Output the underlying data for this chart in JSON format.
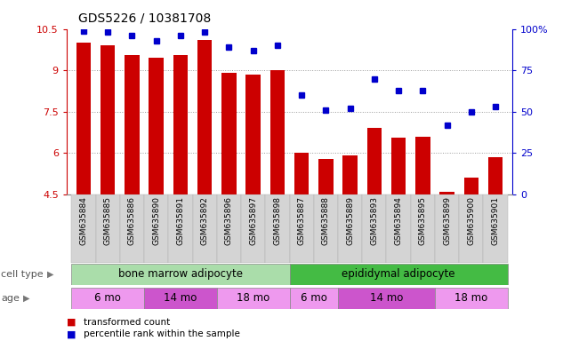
{
  "title": "GDS5226 / 10381708",
  "samples": [
    "GSM635884",
    "GSM635885",
    "GSM635886",
    "GSM635890",
    "GSM635891",
    "GSM635892",
    "GSM635896",
    "GSM635897",
    "GSM635898",
    "GSM635887",
    "GSM635888",
    "GSM635889",
    "GSM635893",
    "GSM635894",
    "GSM635895",
    "GSM635899",
    "GSM635900",
    "GSM635901"
  ],
  "bar_values": [
    10.0,
    9.9,
    9.55,
    9.45,
    9.55,
    10.1,
    8.9,
    8.85,
    9.0,
    6.0,
    5.8,
    5.9,
    6.9,
    6.55,
    6.6,
    4.6,
    5.1,
    5.85
  ],
  "dot_values": [
    99,
    98,
    96,
    93,
    96,
    98,
    89,
    87,
    90,
    60,
    51,
    52,
    70,
    63,
    63,
    42,
    50,
    53
  ],
  "ylim": [
    4.5,
    10.5
  ],
  "y2lim": [
    0,
    100
  ],
  "yticks": [
    4.5,
    6.0,
    7.5,
    9.0,
    10.5
  ],
  "ytick_labels": [
    "4.5",
    "6",
    "7.5",
    "9",
    "10.5"
  ],
  "y2ticks": [
    0,
    25,
    50,
    75,
    100
  ],
  "y2tick_labels": [
    "0",
    "25",
    "50",
    "75",
    "100%"
  ],
  "bar_color": "#cc0000",
  "dot_color": "#0000cc",
  "cell_type_groups": [
    {
      "label": "bone marrow adipocyte",
      "start": 0,
      "end": 9,
      "color": "#aaddaa"
    },
    {
      "label": "epididymal adipocyte",
      "start": 9,
      "end": 18,
      "color": "#44bb44"
    }
  ],
  "age_groups": [
    {
      "label": "6 mo",
      "start": 0,
      "end": 3,
      "color": "#ee99ee"
    },
    {
      "label": "14 mo",
      "start": 3,
      "end": 6,
      "color": "#cc55cc"
    },
    {
      "label": "18 mo",
      "start": 6,
      "end": 9,
      "color": "#ee99ee"
    },
    {
      "label": "6 mo",
      "start": 9,
      "end": 11,
      "color": "#ee99ee"
    },
    {
      "label": "14 mo",
      "start": 11,
      "end": 15,
      "color": "#cc55cc"
    },
    {
      "label": "18 mo",
      "start": 15,
      "end": 18,
      "color": "#ee99ee"
    }
  ],
  "legend_bar_label": "transformed count",
  "legend_dot_label": "percentile rank within the sample",
  "cell_type_label": "cell type",
  "age_label": "age",
  "bar_width": 0.6,
  "xtick_bg": "#cccccc",
  "grid_yticks": [
    6.0,
    7.5,
    9.0
  ]
}
